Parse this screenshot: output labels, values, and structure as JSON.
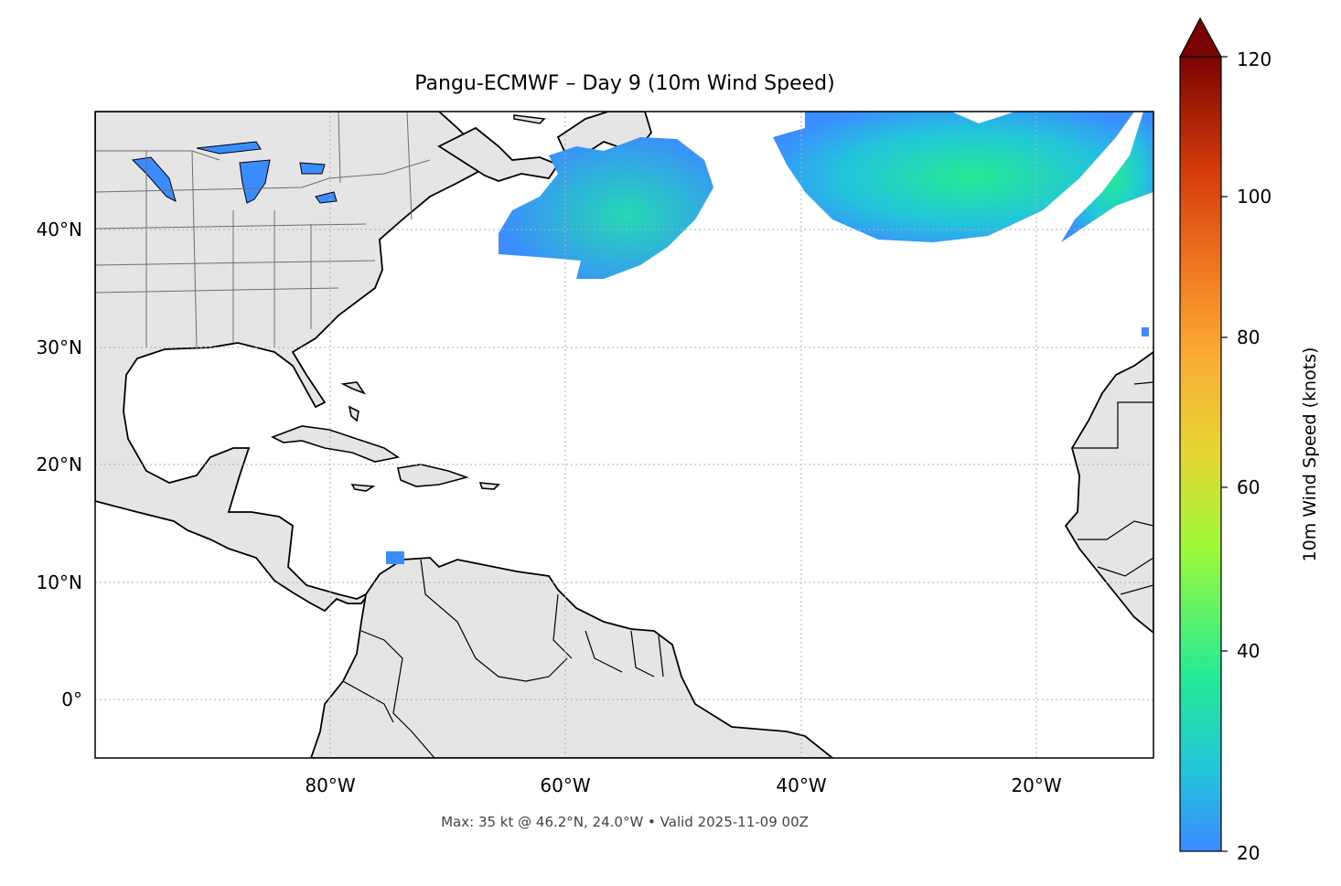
{
  "title": "Pangu-ECMWF – Day 9 (10m Wind Speed)",
  "footer": "Max: 35 kt @ 46.2°N, 24.0°W • Valid 2025-11-09 00Z",
  "lat_labels": [
    "40°N",
    "30°N",
    "20°N",
    "10°N",
    "0°"
  ],
  "lon_labels": [
    "80°W",
    "60°W",
    "40°W",
    "20°W"
  ],
  "colorbar": {
    "label": "10m Wind Speed (knots)",
    "ticks": [
      "120",
      "100",
      "80",
      "60",
      "40",
      "20"
    ],
    "colors": [
      "#3b8cff",
      "#23c4dc",
      "#24ea94",
      "#9dfa3a",
      "#e6d634",
      "#fbad35",
      "#f0751f",
      "#d33a0a",
      "#9e1503",
      "#6e0000"
    ]
  },
  "colors": {
    "land": "#e5e5e5",
    "coast": "#000000",
    "border": "#6e6e6e",
    "wind_low": "#3b8cff",
    "wind_mid": "#23c4dc",
    "wind_high": "#24ea94"
  }
}
